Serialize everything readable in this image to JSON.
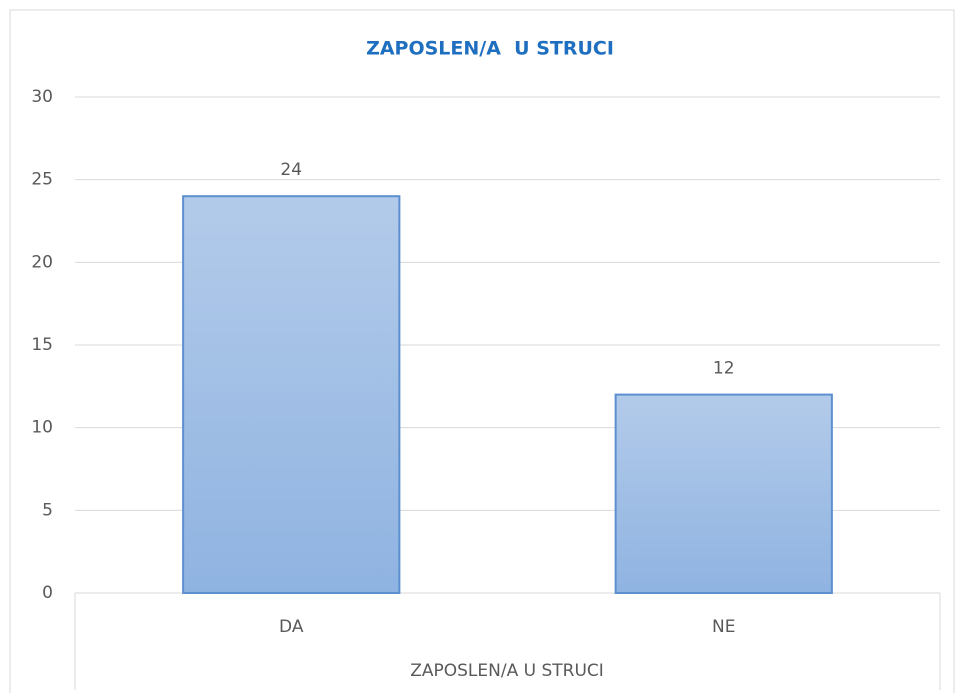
{
  "chart_data": {
    "type": "bar",
    "title": "ZAPOSLEN/A  U STRUCI",
    "x_label": "ZAPOSLEN/A U STRUCI",
    "categories": [
      "DA",
      "NE"
    ],
    "values": [
      24,
      12
    ],
    "color": "#9dbde6",
    "edge_color": "#5b8fcf",
    "ylim": [
      0,
      30
    ],
    "yticks": [
      0,
      5,
      10,
      15,
      20,
      25,
      30
    ],
    "grid": true
  }
}
